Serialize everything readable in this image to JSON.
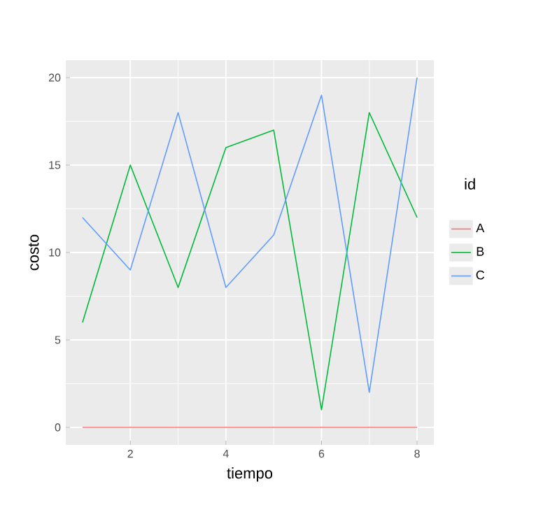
{
  "chart_data": {
    "type": "line",
    "xlabel": "tiempo",
    "ylabel": "costo",
    "legend_title": "id",
    "x": [
      1,
      2,
      3,
      4,
      5,
      6,
      7,
      8
    ],
    "series": [
      {
        "name": "A",
        "color": "#f8766d",
        "values": [
          0,
          0,
          0,
          0,
          0,
          0,
          0,
          0
        ]
      },
      {
        "name": "B",
        "color": "#00ba38",
        "values": [
          6,
          15,
          8,
          16,
          17,
          1,
          18,
          12
        ]
      },
      {
        "name": "C",
        "color": "#619cff",
        "values": [
          12,
          9,
          18,
          8,
          11,
          19,
          2,
          20
        ]
      }
    ],
    "xlim": [
      0.65,
      8.35
    ],
    "ylim": [
      -1,
      21
    ],
    "xticks": [
      2,
      4,
      6,
      8
    ],
    "yticks": [
      0,
      5,
      10,
      15,
      20
    ],
    "grid": true,
    "legend": "right",
    "marker": "none",
    "line_style": "solid"
  }
}
